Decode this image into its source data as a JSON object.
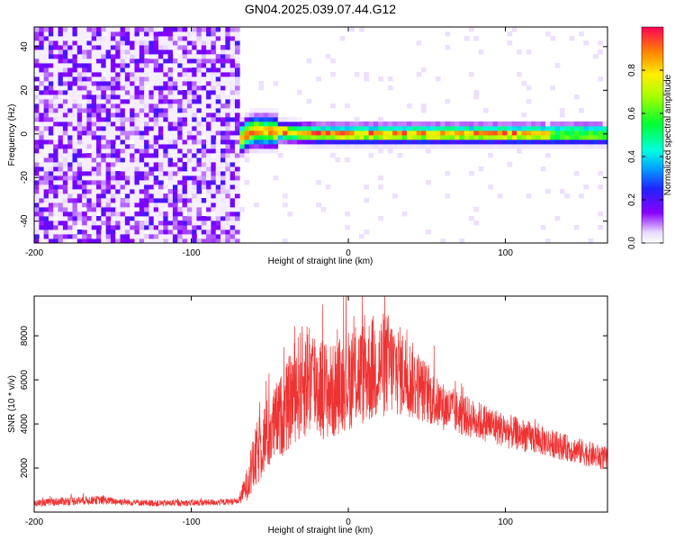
{
  "title": "GN04.2025.039.07.44.G12",
  "chart_data": [
    {
      "type": "heatmap",
      "xlabel": "Height of straight line (km)",
      "ylabel": "Frequency (Hz)",
      "xlim": [
        -200,
        165
      ],
      "ylim": [
        -50,
        49
      ],
      "xticks": [
        -200,
        -100,
        0,
        100
      ],
      "yticks": [
        -40,
        -20,
        0,
        20,
        40
      ],
      "colorbar": {
        "label": "Normalized spectral amplitude",
        "range": [
          0,
          1
        ],
        "ticks": [
          "0.0",
          "0.2",
          "0.4",
          "0.6",
          "0.8"
        ]
      },
      "noise_region_x": [
        -200,
        -70
      ],
      "signal_line": {
        "start_x": -70,
        "frequency": 0,
        "points": [
          [
            -70,
            -3
          ],
          [
            -65,
            0
          ],
          [
            -60,
            1.5
          ],
          [
            -40,
            1
          ],
          [
            -20,
            0
          ],
          [
            0,
            0
          ],
          [
            50,
            0
          ],
          [
            100,
            0
          ],
          [
            165,
            0
          ]
        ]
      }
    },
    {
      "type": "line",
      "xlabel": "Height of straight line (km)",
      "ylabel": "SNR (10 * v/v)",
      "xlim": [
        -200,
        165
      ],
      "ylim": [
        0,
        9800
      ],
      "xticks": [
        -200,
        -100,
        0,
        100
      ],
      "yticks": [
        2000,
        4000,
        6000,
        8000
      ],
      "color": "#ee3333",
      "series": [
        {
          "x": [
            -200,
            -180,
            -160,
            -140,
            -120,
            -100,
            -80,
            -70,
            -65,
            -60,
            -55,
            -50,
            -45,
            -40,
            -35,
            -30,
            -25,
            -20,
            -15,
            -10,
            -5,
            0,
            5,
            10,
            15,
            20,
            25,
            30,
            35,
            40,
            45,
            50,
            55,
            60,
            70,
            80,
            90,
            100,
            110,
            120,
            130,
            140,
            150,
            160,
            165
          ],
          "y": [
            400,
            500,
            550,
            450,
            400,
            420,
            450,
            500,
            1200,
            2200,
            3200,
            3600,
            4200,
            4600,
            5400,
            5800,
            6200,
            5800,
            5600,
            5400,
            5800,
            6000,
            6200,
            6300,
            6500,
            6600,
            6700,
            6500,
            6300,
            6000,
            5700,
            5400,
            5000,
            4800,
            4500,
            4200,
            4000,
            3700,
            3500,
            3300,
            3100,
            2900,
            2700,
            2500,
            2400
          ],
          "spread": [
            150,
            200,
            200,
            150,
            150,
            150,
            150,
            150,
            700,
            1400,
            1700,
            1700,
            1800,
            2000,
            2300,
            2600,
            2800,
            2500,
            2300,
            2200,
            2200,
            2300,
            2400,
            2400,
            2500,
            2500,
            2400,
            2200,
            2000,
            1800,
            1600,
            1400,
            1200,
            1100,
            1000,
            900,
            850,
            800,
            750,
            700,
            650,
            600,
            600,
            550,
            550
          ]
        }
      ]
    }
  ]
}
